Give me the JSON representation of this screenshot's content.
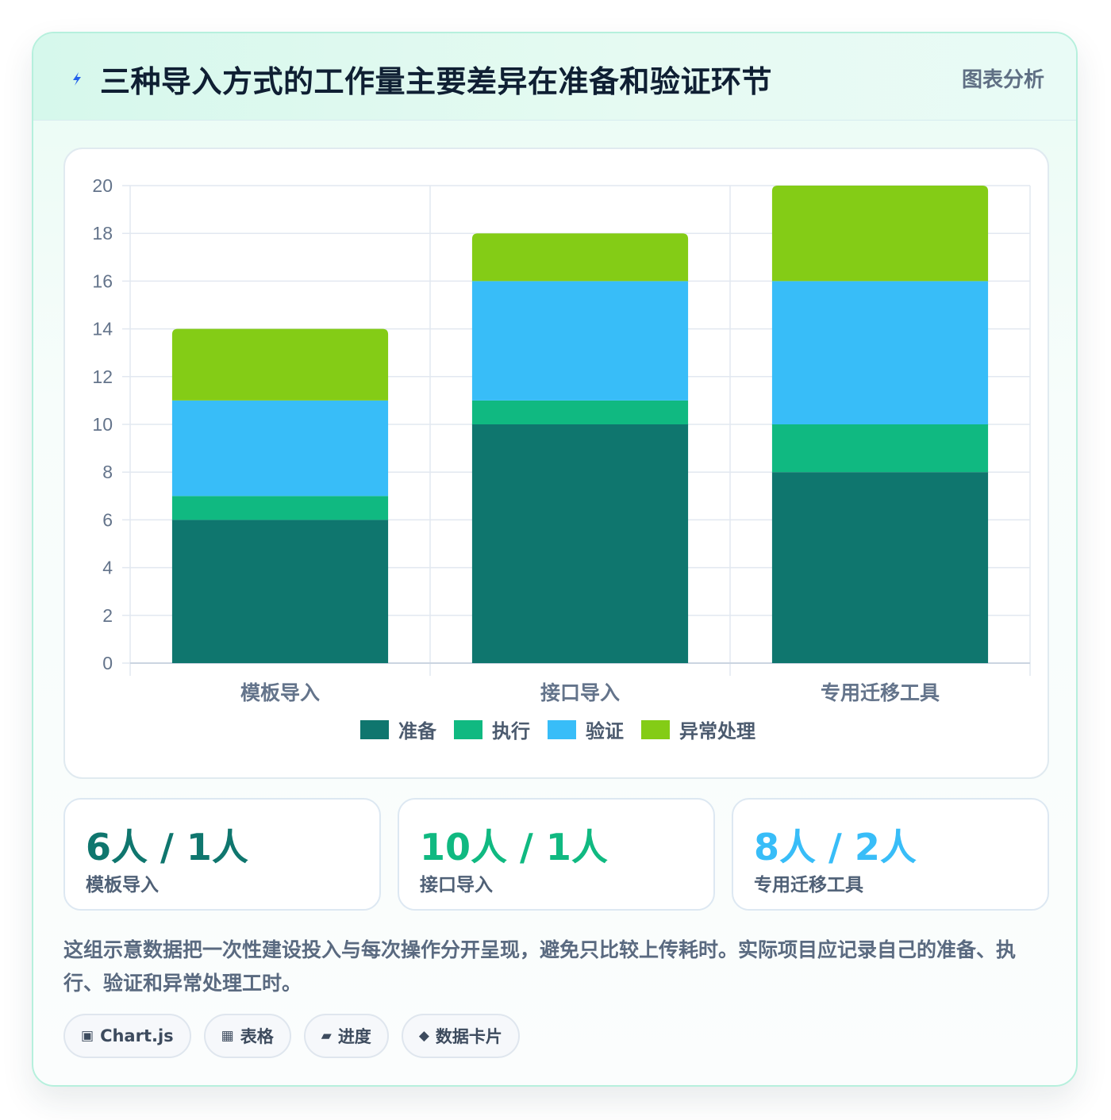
{
  "header": {
    "title": "三种导入方式的工作量主要差异在准备和验证环节",
    "tag": "图表分析",
    "icon": "lightning-icon"
  },
  "colors": {
    "prep": "#0f766e",
    "exec": "#10b981",
    "verify": "#38bdf8",
    "exception": "#84cc16",
    "grid": "#e2e8f0",
    "tick": "#64748b"
  },
  "chart_data": {
    "type": "bar",
    "stacked": true,
    "categories": [
      "模板导入",
      "接口导入",
      "专用迁移工具"
    ],
    "series": [
      {
        "name": "准备",
        "values": [
          6,
          10,
          8
        ],
        "color": "#0f766e"
      },
      {
        "name": "执行",
        "values": [
          1,
          1,
          2
        ],
        "color": "#10b981"
      },
      {
        "name": "验证",
        "values": [
          4,
          5,
          6
        ],
        "color": "#38bdf8"
      },
      {
        "name": "异常处理",
        "values": [
          3,
          2,
          4
        ],
        "color": "#84cc16"
      }
    ],
    "ylim": [
      0,
      20
    ],
    "yticks": [
      0,
      2,
      4,
      6,
      8,
      10,
      12,
      14,
      16,
      18,
      20
    ],
    "grid": true,
    "legend": "bottom"
  },
  "stats": [
    {
      "value": "6人 / 1人",
      "label": "模板导入",
      "color": "#0f766e"
    },
    {
      "value": "10人 / 1人",
      "label": "接口导入",
      "color": "#10b981"
    },
    {
      "value": "8人 / 2人",
      "label": "专用迁移工具",
      "color": "#38bdf8"
    }
  ],
  "note": "这组示意数据把一次性建设投入与每次操作分开呈现，避免只比较上传耗时。实际项目应记录自己的准备、执行、验证和异常处理工时。",
  "chips": [
    {
      "icon": "▣",
      "label": "Chart.js"
    },
    {
      "icon": "▦",
      "label": "表格"
    },
    {
      "icon": "▰",
      "label": "进度"
    },
    {
      "icon": "◆",
      "label": "数据卡片"
    }
  ]
}
